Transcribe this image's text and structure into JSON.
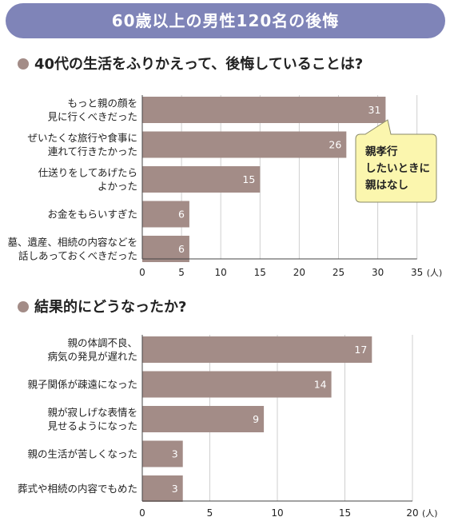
{
  "banner": {
    "title": "60歳以上の男性120名の後悔"
  },
  "colors": {
    "banner": "#7f84b8",
    "bar": "#a38c87",
    "marker": "#a38c87",
    "callout_fill": "#fbf6ae",
    "callout_stroke": "#8a8a6a",
    "gridline": "#cfcfcf",
    "axis": "#444444"
  },
  "callout": {
    "lines": [
      "親孝行",
      "したいときに",
      "親はなし"
    ]
  },
  "chart_data": [
    {
      "type": "bar",
      "orientation": "horizontal",
      "title": "40代の生活をふりかえって、後悔していることは?",
      "categories": [
        [
          "もっと親の顔を",
          "見に行くべきだった"
        ],
        [
          "ぜいたくな旅行や食事に",
          "連れて行きたかった"
        ],
        [
          "仕送りをしてあげたら",
          "よかった"
        ],
        [
          "お金をもらいすぎた"
        ],
        [
          "墓、遺産、相続の内容などを",
          "話しあっておくべきだった"
        ]
      ],
      "values": [
        31,
        26,
        15,
        6,
        6
      ],
      "xlim": [
        0,
        35
      ],
      "xticks": [
        0,
        5,
        10,
        15,
        20,
        25,
        30,
        35
      ],
      "unit": "(人)",
      "grid": true
    },
    {
      "type": "bar",
      "orientation": "horizontal",
      "title": "結果的にどうなったか?",
      "categories": [
        [
          "親の体調不良、",
          "病気の発見が遅れた"
        ],
        [
          "親子関係が疎遠になった"
        ],
        [
          "親が寂しげな表情を",
          "見せるようになった"
        ],
        [
          "親の生活が苦しくなった"
        ],
        [
          "葬式や相続の内容でもめた"
        ]
      ],
      "values": [
        17,
        14,
        9,
        3,
        3
      ],
      "xlim": [
        0,
        20
      ],
      "xticks": [
        0,
        5,
        10,
        15,
        20
      ],
      "unit": "(人)",
      "grid": true
    }
  ]
}
